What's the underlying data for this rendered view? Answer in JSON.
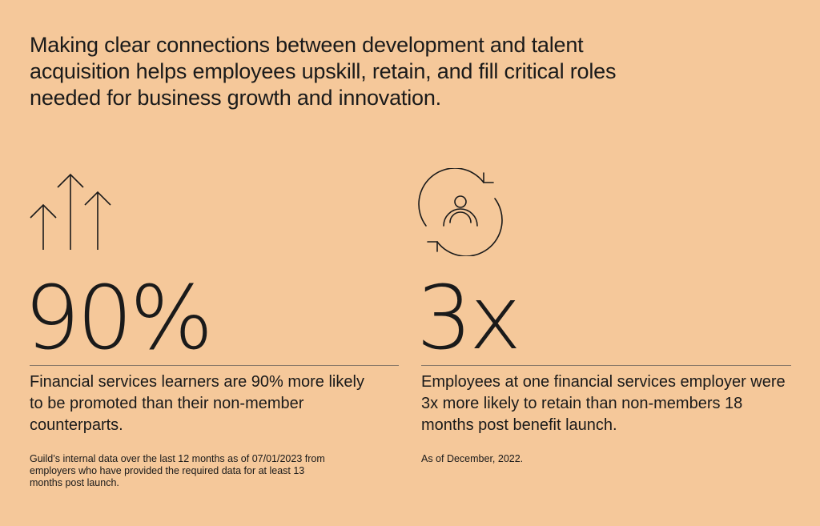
{
  "headline": "Making clear connections between development and talent acquisition helps employees upskill, retain, and fill critical roles needed for business growth and innovation.",
  "left": {
    "icon": "upward-arrows-icon",
    "stat": "90%",
    "description": "Financial services learners are 90% more likely to be promoted than their non-member counterparts.",
    "note": "Guild’s internal data over the last 12 months as of 07/01/2023 from employers who have provided the required data for at least 13 months post launch."
  },
  "right": {
    "icon": "person-cycle-icon",
    "stat": "3x",
    "description": "Employees at one financial services employer were 3x more likely to retain than non-members 18 months post benefit launch.",
    "note": "As of December, 2022."
  },
  "colors": {
    "background": "#f5c89a",
    "text": "#1a1a1a",
    "divider": "#8a7a6a"
  }
}
